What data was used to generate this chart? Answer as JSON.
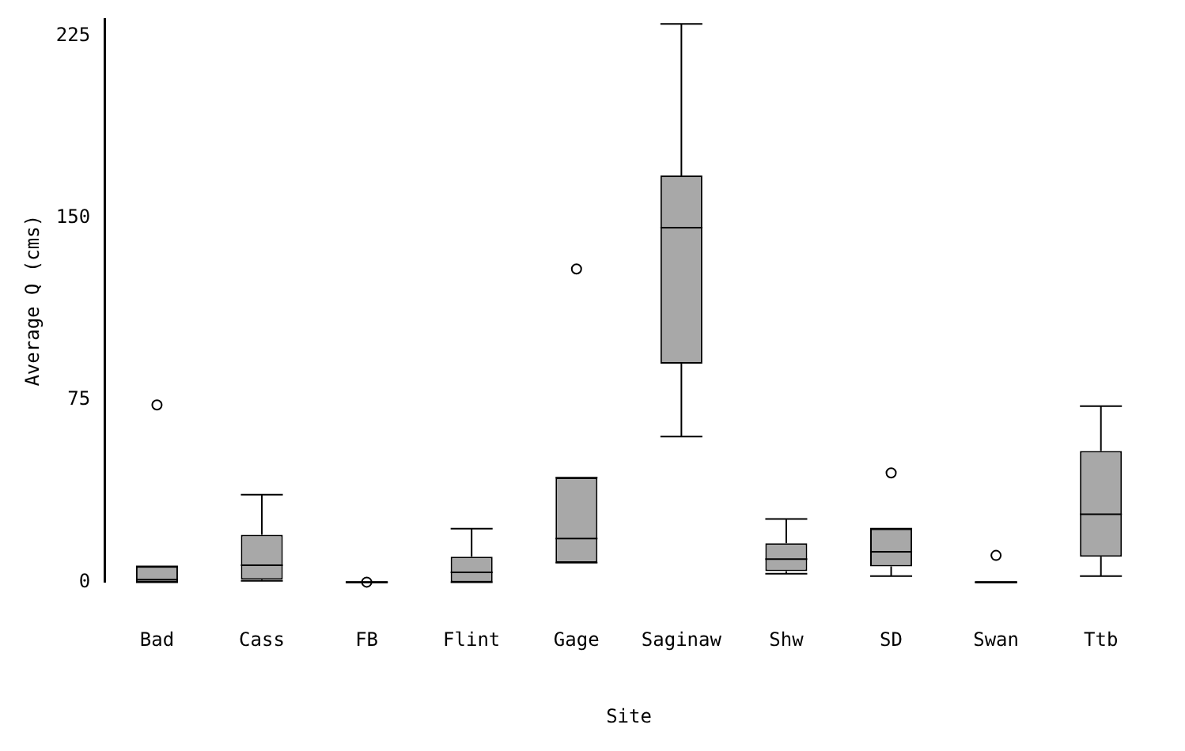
{
  "chart_data": {
    "type": "box",
    "xlabel": "Site",
    "ylabel": "Average Q (cms)",
    "categories": [
      "Bad",
      "Cass",
      "FB",
      "Flint",
      "Gage",
      "Saginaw",
      "Shw",
      "SD",
      "Swan",
      "Ttb"
    ],
    "boxes": [
      {
        "low": 0,
        "q1": 0,
        "median": 1,
        "q3": 6.5,
        "high": 6.5,
        "outliers": [
          73
        ]
      },
      {
        "low": 0.5,
        "q1": 1,
        "median": 7,
        "q3": 19.5,
        "high": 36
      },
      {
        "low": 0,
        "q1": 0,
        "median": 0,
        "q3": 0,
        "high": 0,
        "outliers": [
          0
        ]
      },
      {
        "low": 0,
        "q1": 0,
        "median": 4,
        "q3": 10.5,
        "high": 22
      },
      {
        "low": 8,
        "q1": 8,
        "median": 18,
        "q3": 43,
        "high": 43,
        "outliers": [
          129
        ]
      },
      {
        "low": 60,
        "q1": 90,
        "median": 146,
        "q3": 167.5,
        "high": 230
      },
      {
        "low": 3.5,
        "q1": 4.5,
        "median": 9.5,
        "q3": 16,
        "high": 26
      },
      {
        "low": 2.5,
        "q1": 6.5,
        "median": 12.5,
        "q3": 22,
        "high": 22,
        "outliers": [
          45
        ]
      },
      {
        "low": 0,
        "q1": 0,
        "median": 0,
        "q3": 0,
        "high": 0,
        "outliers": [
          11
        ]
      },
      {
        "low": 2.5,
        "q1": 10.5,
        "median": 28,
        "q3": 54,
        "high": 72.5
      }
    ],
    "ylim": [
      0,
      232
    ],
    "yticks": [
      0,
      75,
      150,
      225
    ],
    "grid": false,
    "legend": false
  }
}
